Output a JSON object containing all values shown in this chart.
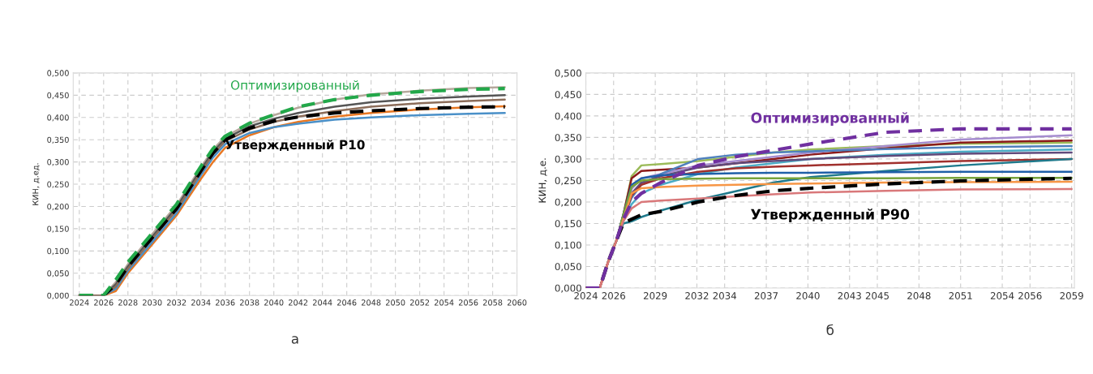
{
  "chart_data": [
    {
      "type": "line",
      "ylabel": "КИН, д.ед.",
      "annotations": [
        "а"
      ],
      "grid": true,
      "legend": false,
      "marker": "none",
      "x": [
        2024,
        2025,
        2026,
        2027,
        2028,
        2030,
        2032,
        2034,
        2035,
        2036,
        2038,
        2040,
        2042,
        2045,
        2048,
        2052,
        2056,
        2059
      ],
      "xlim": [
        2023.5,
        2060
      ],
      "xticks": [
        2024,
        2026,
        2028,
        2030,
        2032,
        2034,
        2036,
        2038,
        2040,
        2042,
        2044,
        2046,
        2048,
        2050,
        2052,
        2054,
        2056,
        2058,
        2060
      ],
      "ylim": [
        0,
        0.5
      ],
      "yticks": [
        {
          "value": 0,
          "label": "0,000"
        },
        {
          "value": 0.05,
          "label": "0,050"
        },
        {
          "value": 0.1,
          "label": "0,100"
        },
        {
          "value": 0.15,
          "label": "0,150"
        },
        {
          "value": 0.2,
          "label": "0,200"
        },
        {
          "value": 0.25,
          "label": "0,250"
        },
        {
          "value": 0.3,
          "label": "0,300"
        },
        {
          "value": 0.35,
          "label": "0,350"
        },
        {
          "value": 0.4,
          "label": "0,400"
        },
        {
          "value": 0.45,
          "label": "0,450"
        },
        {
          "value": 0.5,
          "label": "0,500"
        }
      ],
      "series": [
        {
          "color": "#e87722",
          "line_style": "solid",
          "values": [
            0,
            0,
            0,
            0.01,
            0.05,
            0.115,
            0.18,
            0.262,
            0.3,
            0.332,
            0.36,
            0.378,
            0.39,
            0.402,
            0.41,
            0.418,
            0.423,
            0.425
          ]
        },
        {
          "color": "#4a90c8",
          "line_style": "solid",
          "values": [
            0,
            0,
            0,
            0.015,
            0.055,
            0.12,
            0.185,
            0.27,
            0.31,
            0.34,
            0.365,
            0.378,
            0.386,
            0.395,
            0.4,
            0.405,
            0.408,
            0.41
          ]
        },
        {
          "color": "#b5a89c",
          "line_style": "solid",
          "values": [
            0,
            0,
            0,
            0.03,
            0.07,
            0.138,
            0.203,
            0.288,
            0.328,
            0.357,
            0.386,
            0.405,
            0.422,
            0.44,
            0.452,
            0.46,
            0.466,
            0.468
          ]
        },
        {
          "color": "#555555",
          "line_style": "solid",
          "values": [
            0,
            0,
            0,
            0.025,
            0.065,
            0.132,
            0.198,
            0.283,
            0.323,
            0.352,
            0.38,
            0.397,
            0.41,
            0.424,
            0.434,
            0.442,
            0.447,
            0.45
          ]
        },
        {
          "color": "#8c6d5a",
          "line_style": "solid",
          "values": [
            0,
            0,
            0,
            0.02,
            0.06,
            0.127,
            0.192,
            0.277,
            0.317,
            0.347,
            0.373,
            0.39,
            0.402,
            0.414,
            0.424,
            0.432,
            0.437,
            0.44
          ]
        },
        {
          "name": "Утвержденный P10",
          "color": "#000000",
          "line_style": "dashed",
          "values": [
            0,
            0,
            0,
            0.025,
            0.065,
            0.13,
            0.195,
            0.28,
            0.32,
            0.35,
            0.376,
            0.392,
            0.401,
            0.41,
            0.415,
            0.42,
            0.423,
            0.424
          ]
        },
        {
          "name": "Оптимизированный",
          "color": "#22a84a",
          "line_style": "dashed",
          "values": [
            0,
            0,
            0,
            0.035,
            0.075,
            0.14,
            0.205,
            0.29,
            0.33,
            0.358,
            0.387,
            0.406,
            0.424,
            0.44,
            0.45,
            0.458,
            0.463,
            0.465
          ]
        }
      ]
    },
    {
      "type": "line",
      "ylabel": "КИН, д.е.",
      "annotations": [
        "б"
      ],
      "grid": true,
      "legend": false,
      "marker": "none",
      "x": [
        2024,
        2025,
        2025.6,
        2026.2,
        2026.7,
        2027.3,
        2028,
        2029.4,
        2032.1,
        2034.8,
        2037.5,
        2040.2,
        2045.6,
        2051,
        2059
      ],
      "xlim": [
        2024,
        2059.2
      ],
      "xticks": [
        2024,
        2026,
        2029,
        2032,
        2034,
        2037,
        2040,
        2043,
        2045,
        2048,
        2051,
        2054,
        2056,
        2059
      ],
      "ylim": [
        0,
        0.5
      ],
      "yticks": [
        {
          "value": 0,
          "label": "0,000"
        },
        {
          "value": 0.05,
          "label": "0,050"
        },
        {
          "value": 0.1,
          "label": "0,100"
        },
        {
          "value": 0.15,
          "label": "0,150"
        },
        {
          "value": 0.2,
          "label": "0,200"
        },
        {
          "value": 0.25,
          "label": "0,250"
        },
        {
          "value": 0.3,
          "label": "0,300"
        },
        {
          "value": 0.35,
          "label": "0,350"
        },
        {
          "value": 0.4,
          "label": "0,400"
        },
        {
          "value": 0.45,
          "label": "0,450"
        },
        {
          "value": 0.5,
          "label": "0,500"
        }
      ],
      "series": [
        {
          "color": "#9bbb59",
          "line_style": "solid",
          "values": [
            0,
            0,
            0.06,
            0.11,
            0.17,
            0.26,
            0.285,
            0.288,
            0.295,
            0.305,
            0.315,
            0.322,
            0.33,
            0.335,
            0.338
          ]
        },
        {
          "color": "#8b1a1a",
          "line_style": "solid",
          "values": [
            0,
            0,
            0.06,
            0.11,
            0.17,
            0.255,
            0.272,
            0.275,
            0.28,
            0.29,
            0.3,
            0.31,
            0.325,
            0.338,
            0.343
          ]
        },
        {
          "color": "#a58ccf",
          "line_style": "solid",
          "values": [
            0,
            0,
            0.06,
            0.11,
            0.165,
            0.23,
            0.255,
            0.265,
            0.285,
            0.295,
            0.305,
            0.315,
            0.33,
            0.345,
            0.355
          ]
        },
        {
          "color": "#4f81bd",
          "line_style": "solid",
          "values": [
            0,
            0,
            0.06,
            0.11,
            0.16,
            0.21,
            0.24,
            0.265,
            0.3,
            0.31,
            0.315,
            0.318,
            0.323,
            0.327,
            0.33
          ]
        },
        {
          "color": "#4bacc6",
          "line_style": "solid",
          "values": [
            null,
            null,
            null,
            0.11,
            0.155,
            0.195,
            0.22,
            0.24,
            0.265,
            0.28,
            0.29,
            0.3,
            0.31,
            0.317,
            0.322
          ]
        },
        {
          "color": "#604a7b",
          "line_style": "solid",
          "values": [
            0,
            0,
            0.06,
            0.11,
            0.165,
            0.22,
            0.245,
            0.26,
            0.28,
            0.29,
            0.295,
            0.3,
            0.307,
            0.312,
            0.315
          ]
        },
        {
          "color": "#a0302d",
          "line_style": "solid",
          "values": [
            0,
            0,
            0.06,
            0.11,
            0.16,
            0.215,
            0.24,
            0.255,
            0.27,
            0.278,
            0.282,
            0.285,
            0.29,
            0.295,
            0.3
          ]
        },
        {
          "color": "#1f7a8c",
          "line_style": "solid",
          "values": [
            null,
            null,
            0.06,
            0.11,
            0.15,
            0.155,
            0.165,
            0.18,
            0.205,
            0.225,
            0.245,
            0.258,
            0.272,
            0.285,
            0.3
          ]
        },
        {
          "color": "#1f5fa8",
          "line_style": "solid",
          "values": [
            null,
            null,
            null,
            0.11,
            0.17,
            0.24,
            0.255,
            0.262,
            0.265,
            0.267,
            0.268,
            0.268,
            0.269,
            0.27,
            0.27
          ]
        },
        {
          "color": "#77a33b",
          "line_style": "solid",
          "values": [
            null,
            null,
            0.06,
            0.11,
            0.17,
            0.235,
            0.25,
            0.253,
            0.254,
            0.255,
            0.255,
            0.255,
            0.255,
            0.256,
            0.256
          ]
        },
        {
          "color": "#f79646",
          "line_style": "solid",
          "values": [
            0,
            0,
            0.06,
            0.11,
            0.16,
            0.22,
            0.232,
            0.235,
            0.238,
            0.24,
            0.242,
            0.243,
            0.245,
            0.246,
            0.247
          ]
        },
        {
          "color": "#d9787a",
          "line_style": "solid",
          "values": [
            0,
            0,
            0.06,
            0.11,
            0.155,
            0.185,
            0.2,
            0.203,
            0.208,
            0.213,
            0.218,
            0.222,
            0.226,
            0.229,
            0.23
          ]
        },
        {
          "name": "Утвержденный P90",
          "color": "#000000",
          "line_style": "dashed",
          "values": [
            0,
            0,
            0.06,
            0.11,
            0.15,
            0.16,
            0.17,
            0.178,
            0.2,
            0.215,
            0.226,
            0.232,
            0.242,
            0.249,
            0.255
          ]
        },
        {
          "name": "Оптимизированный",
          "color": "#7030a0",
          "line_style": "dashed",
          "values": [
            0,
            0,
            0.06,
            0.11,
            0.16,
            0.2,
            0.22,
            0.245,
            0.285,
            0.305,
            0.32,
            0.335,
            0.362,
            0.37,
            0.37
          ]
        }
      ]
    }
  ]
}
